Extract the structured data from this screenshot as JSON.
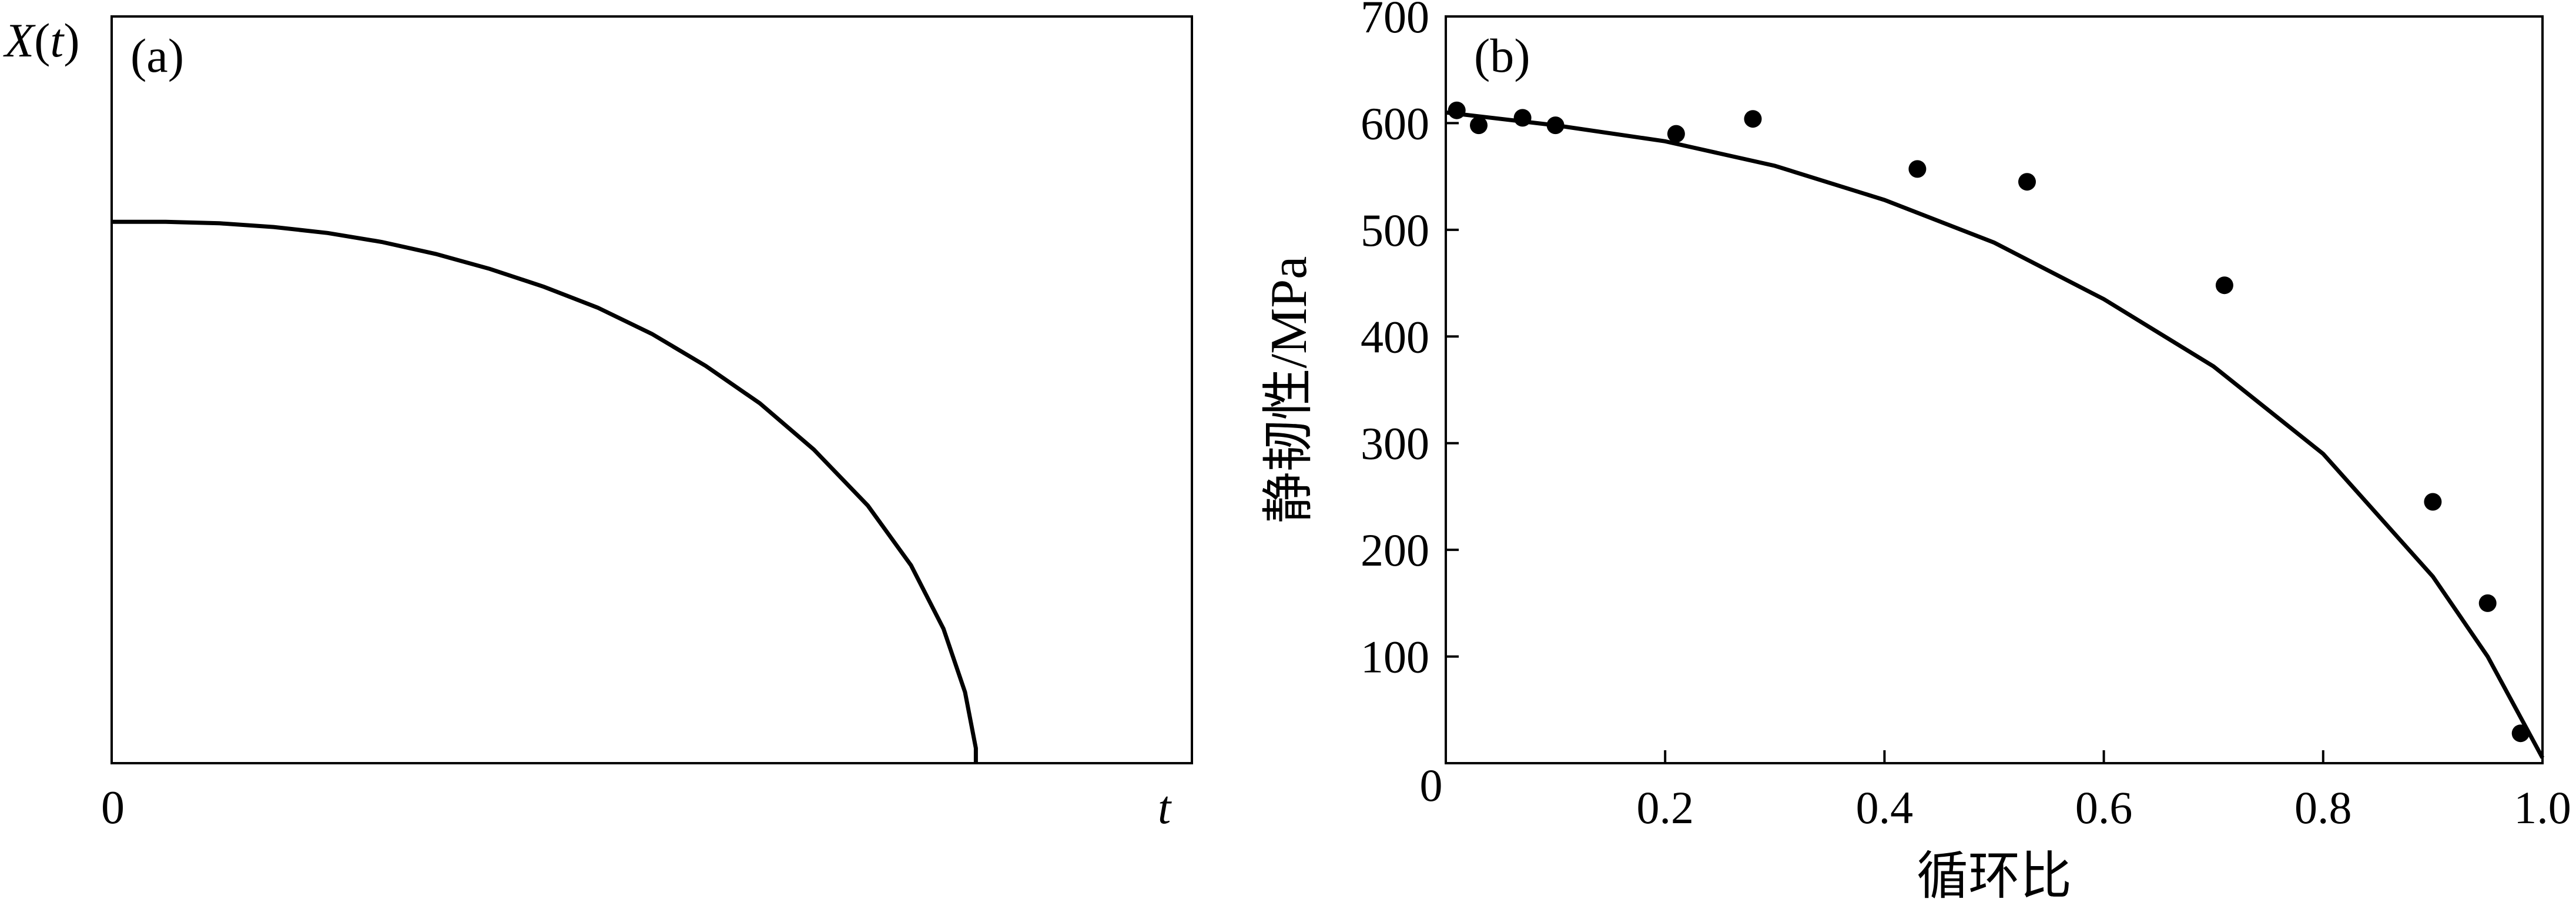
{
  "chart_data": [
    {
      "type": "line",
      "panel_label": "(a)",
      "ylabel_parts": [
        "X",
        "(",
        "t",
        ")"
      ],
      "xlabel": "t",
      "x_origin_label": "0",
      "x_range": [
        0,
        1
      ],
      "y_range": [
        0,
        1
      ],
      "curve": [
        [
          0.0,
          0.725
        ],
        [
          0.05,
          0.725
        ],
        [
          0.1,
          0.723
        ],
        [
          0.15,
          0.718
        ],
        [
          0.2,
          0.71
        ],
        [
          0.25,
          0.698
        ],
        [
          0.3,
          0.682
        ],
        [
          0.35,
          0.662
        ],
        [
          0.4,
          0.638
        ],
        [
          0.45,
          0.61
        ],
        [
          0.5,
          0.575
        ],
        [
          0.55,
          0.532
        ],
        [
          0.6,
          0.482
        ],
        [
          0.65,
          0.42
        ],
        [
          0.7,
          0.345
        ],
        [
          0.74,
          0.265
        ],
        [
          0.77,
          0.18
        ],
        [
          0.79,
          0.095
        ],
        [
          0.8,
          0.02
        ],
        [
          0.8,
          0.0
        ]
      ],
      "grid": false,
      "legend": "none"
    },
    {
      "type": "scatter",
      "panel_label": "(b)",
      "xlabel": "循环比",
      "ylabel": "静韧性/MPa",
      "xlim": [
        0,
        1.0
      ],
      "ylim": [
        0,
        700
      ],
      "x_ticks": [
        "0",
        "0.2",
        "0.4",
        "0.6",
        "0.8",
        "1.0"
      ],
      "x_tick_values": [
        0,
        0.2,
        0.4,
        0.6,
        0.8,
        1.0
      ],
      "y_ticks": [
        "100",
        "200",
        "300",
        "400",
        "500",
        "600",
        "700"
      ],
      "y_tick_values": [
        100,
        200,
        300,
        400,
        500,
        600,
        700
      ],
      "points": [
        [
          0.01,
          612
        ],
        [
          0.03,
          598
        ],
        [
          0.07,
          605
        ],
        [
          0.1,
          598
        ],
        [
          0.21,
          590
        ],
        [
          0.28,
          604
        ],
        [
          0.43,
          557
        ],
        [
          0.53,
          545
        ],
        [
          0.71,
          448
        ],
        [
          0.9,
          245
        ],
        [
          0.95,
          150
        ],
        [
          0.98,
          28
        ]
      ],
      "fit_curve": [
        [
          0.0,
          610
        ],
        [
          0.1,
          598
        ],
        [
          0.2,
          583
        ],
        [
          0.3,
          560
        ],
        [
          0.4,
          528
        ],
        [
          0.5,
          488
        ],
        [
          0.6,
          435
        ],
        [
          0.7,
          372
        ],
        [
          0.8,
          290
        ],
        [
          0.9,
          175
        ],
        [
          0.95,
          100
        ],
        [
          1.0,
          5
        ]
      ],
      "grid": false,
      "legend": "none"
    }
  ]
}
